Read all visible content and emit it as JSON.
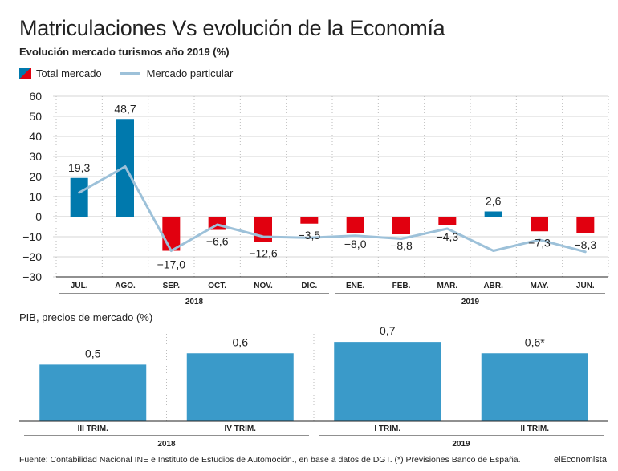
{
  "title": "Matriculaciones Vs evolución de la Economía",
  "subtitle": "Evolución mercado turismos año 2019 (%)",
  "legend": {
    "total": "Total mercado",
    "particular": "Mercado particular"
  },
  "colors": {
    "positive": "#0079ad",
    "negative": "#e1000f",
    "line": "#9dc1d9",
    "pib_bar": "#3a9ac9"
  },
  "chart_data": [
    {
      "type": "bar",
      "title": "Evolución mercado turismos año 2019 (%)",
      "categories": [
        "JUL.",
        "AGO.",
        "SEP.",
        "OCT.",
        "NOV.",
        "DIC.",
        "ENE.",
        "FEB.",
        "MAR.",
        "ABR.",
        "MAY.",
        "JUN."
      ],
      "groups": [
        {
          "label": "2018",
          "from": 0,
          "to": 5
        },
        {
          "label": "2019",
          "from": 6,
          "to": 11
        }
      ],
      "series": [
        {
          "name": "Total mercado",
          "type": "bar",
          "values": [
            19.3,
            48.7,
            -17.0,
            -6.6,
            -12.6,
            -3.5,
            -8.0,
            -8.8,
            -4.3,
            2.6,
            -7.3,
            -8.3
          ],
          "labels": [
            "19,3",
            "48,7",
            "−17,0",
            "−6,6",
            "−12,6",
            "−3,5",
            "−8,0",
            "−8,8",
            "−4,3",
            "2,6",
            "−7,3",
            "−8,3"
          ]
        },
        {
          "name": "Mercado particular",
          "type": "line",
          "values": [
            12,
            25,
            -17,
            -4,
            -10,
            -10.5,
            -9.5,
            -11,
            -6,
            -17,
            -11.5,
            -17.5
          ]
        }
      ],
      "yticks": [
        60,
        50,
        40,
        30,
        20,
        10,
        0,
        -10,
        -20,
        -30
      ],
      "ytick_labels": [
        "60",
        "50",
        "40",
        "30",
        "20",
        "10",
        "0",
        "−10",
        "−20",
        "−30"
      ],
      "ylim": [
        -30,
        60
      ],
      "grid": "vertical dotted"
    },
    {
      "type": "bar",
      "title": "PIB, precios de mercado (%)",
      "categories": [
        "III TRIM.",
        "IV TRIM.",
        "I TRIM.",
        "II TRIM."
      ],
      "groups": [
        {
          "label": "2018",
          "from": 0,
          "to": 1
        },
        {
          "label": "2019",
          "from": 2,
          "to": 3
        }
      ],
      "values": [
        0.5,
        0.6,
        0.7,
        0.6
      ],
      "labels": [
        "0,5",
        "0,6",
        "0,7",
        "0,6*"
      ],
      "ylim": [
        0,
        0.8
      ]
    }
  ],
  "pib_title": "PIB, precios de mercado (%)",
  "source": "Fuente: Contabilidad Nacional INE e Instituto de Estudios de Automoción., en base a datos de DGT. (*) Previsiones Banco de España.",
  "brand": "elEconomista"
}
